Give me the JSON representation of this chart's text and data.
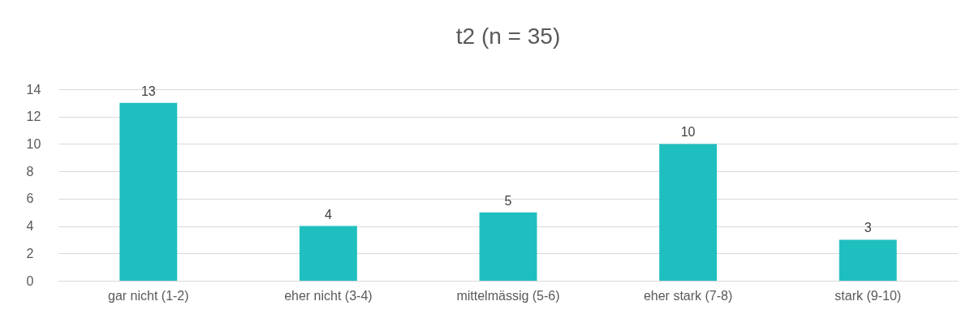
{
  "chart_data": {
    "type": "bar",
    "title": "t2 (n = 35)",
    "categories": [
      "gar nicht (1-2)",
      "eher nicht (3-4)",
      "mittelmässig (5-6)",
      "eher stark (7-8)",
      "stark (9-10)"
    ],
    "values": [
      13,
      4,
      5,
      10,
      3
    ],
    "color": "#20bfbf",
    "ylim": [
      0,
      14
    ],
    "yticks": [
      0,
      2,
      4,
      6,
      8,
      10,
      12,
      14
    ],
    "grid": "y",
    "data_labels": true
  }
}
